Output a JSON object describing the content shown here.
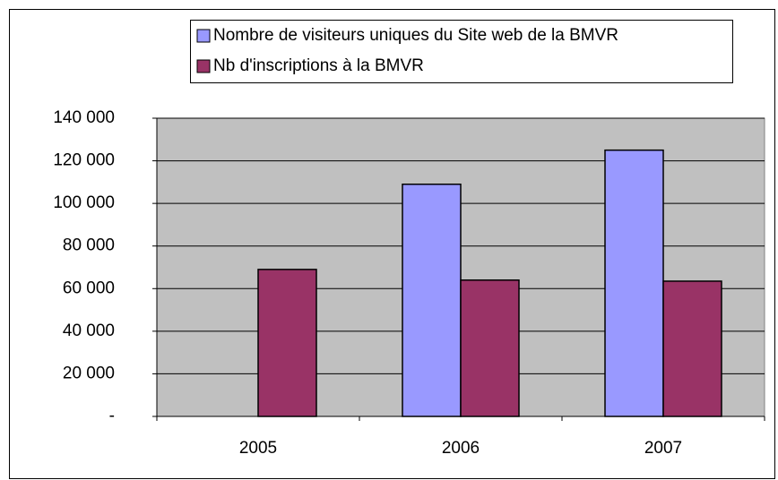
{
  "chart_data": {
    "type": "bar",
    "categories": [
      "2005",
      "2006",
      "2007"
    ],
    "series": [
      {
        "name": "Nombre de visiteurs uniques du Site web de la BMVR",
        "color": "#9999ff",
        "values": [
          null,
          109000,
          125000
        ]
      },
      {
        "name": "Nb d'inscriptions à la BMVR",
        "color": "#993366",
        "values": [
          69000,
          64000,
          63500
        ]
      }
    ],
    "ylim": [
      0,
      140000
    ],
    "yticks": [
      {
        "value": 0,
        "label": "-"
      },
      {
        "value": 20000,
        "label": "20 000"
      },
      {
        "value": 40000,
        "label": "40 000"
      },
      {
        "value": 60000,
        "label": "60 000"
      },
      {
        "value": 80000,
        "label": "80 000"
      },
      {
        "value": 100000,
        "label": "100 000"
      },
      {
        "value": 120000,
        "label": "120 000"
      },
      {
        "value": 140000,
        "label": "140 000"
      }
    ],
    "grid": true,
    "legend": "top"
  }
}
